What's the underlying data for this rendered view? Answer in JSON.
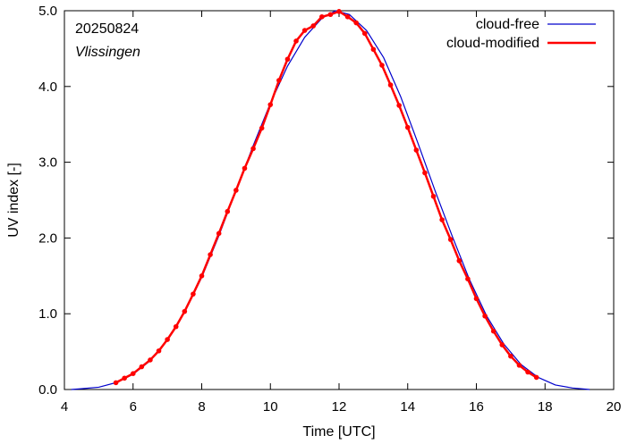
{
  "chart_data": {
    "type": "line",
    "date_label": "20250824",
    "station_label": "Vlissingen",
    "xlabel": "Time  [UTC]",
    "ylabel": "UV index  [-]",
    "xlim": [
      4,
      20
    ],
    "ylim": [
      0,
      5
    ],
    "x_ticks": [
      4,
      6,
      8,
      10,
      12,
      14,
      16,
      18,
      20
    ],
    "x_tick_labels": [
      "4",
      "6",
      "8",
      "10",
      "12",
      "14",
      "16",
      "18",
      "20"
    ],
    "y_ticks": [
      0,
      1,
      2,
      3,
      4,
      5
    ],
    "y_tick_labels": [
      "0.0",
      "1.0",
      "2.0",
      "3.0",
      "4.0",
      "5.0"
    ],
    "grid": false,
    "legend_position": "top-right",
    "series": [
      {
        "name": "cloud-free",
        "color": "#0000cc",
        "markers": false,
        "points": [
          [
            4.2,
            0.0
          ],
          [
            4.5,
            0.01
          ],
          [
            5.0,
            0.03
          ],
          [
            5.5,
            0.09
          ],
          [
            6.0,
            0.2
          ],
          [
            6.5,
            0.38
          ],
          [
            7.0,
            0.65
          ],
          [
            7.5,
            1.02
          ],
          [
            8.0,
            1.48
          ],
          [
            8.5,
            2.03
          ],
          [
            9.0,
            2.63
          ],
          [
            9.5,
            3.22
          ],
          [
            10.0,
            3.78
          ],
          [
            10.5,
            4.27
          ],
          [
            11.0,
            4.65
          ],
          [
            11.5,
            4.9
          ],
          [
            11.9,
            5.0
          ],
          [
            12.3,
            4.95
          ],
          [
            12.8,
            4.74
          ],
          [
            13.3,
            4.38
          ],
          [
            13.8,
            3.86
          ],
          [
            14.3,
            3.25
          ],
          [
            14.8,
            2.62
          ],
          [
            15.3,
            2.02
          ],
          [
            15.8,
            1.45
          ],
          [
            16.3,
            0.97
          ],
          [
            16.8,
            0.6
          ],
          [
            17.3,
            0.33
          ],
          [
            17.8,
            0.16
          ],
          [
            18.3,
            0.06
          ],
          [
            18.8,
            0.02
          ],
          [
            19.3,
            0.0
          ]
        ]
      },
      {
        "name": "cloud-modified",
        "color": "#ff0000",
        "markers": true,
        "points": [
          [
            5.5,
            0.09
          ],
          [
            5.75,
            0.15
          ],
          [
            6.0,
            0.21
          ],
          [
            6.25,
            0.3
          ],
          [
            6.5,
            0.39
          ],
          [
            6.75,
            0.51
          ],
          [
            7.0,
            0.66
          ],
          [
            7.25,
            0.83
          ],
          [
            7.5,
            1.03
          ],
          [
            7.75,
            1.26
          ],
          [
            8.0,
            1.5
          ],
          [
            8.25,
            1.78
          ],
          [
            8.5,
            2.06
          ],
          [
            8.75,
            2.35
          ],
          [
            9.0,
            2.63
          ],
          [
            9.25,
            2.92
          ],
          [
            9.5,
            3.18
          ],
          [
            9.75,
            3.45
          ],
          [
            10.0,
            3.76
          ],
          [
            10.25,
            4.08
          ],
          [
            10.5,
            4.36
          ],
          [
            10.75,
            4.6
          ],
          [
            11.0,
            4.74
          ],
          [
            11.25,
            4.8
          ],
          [
            11.5,
            4.92
          ],
          [
            11.75,
            4.95
          ],
          [
            12.0,
            4.99
          ],
          [
            12.25,
            4.92
          ],
          [
            12.5,
            4.84
          ],
          [
            12.75,
            4.7
          ],
          [
            13.0,
            4.49
          ],
          [
            13.25,
            4.28
          ],
          [
            13.5,
            4.02
          ],
          [
            13.75,
            3.75
          ],
          [
            14.0,
            3.46
          ],
          [
            14.25,
            3.16
          ],
          [
            14.5,
            2.86
          ],
          [
            14.75,
            2.55
          ],
          [
            15.0,
            2.24
          ],
          [
            15.25,
            1.98
          ],
          [
            15.5,
            1.7
          ],
          [
            15.75,
            1.46
          ],
          [
            16.0,
            1.2
          ],
          [
            16.25,
            0.97
          ],
          [
            16.5,
            0.77
          ],
          [
            16.75,
            0.59
          ],
          [
            17.0,
            0.44
          ],
          [
            17.25,
            0.32
          ],
          [
            17.5,
            0.23
          ],
          [
            17.75,
            0.16
          ]
        ]
      }
    ]
  }
}
